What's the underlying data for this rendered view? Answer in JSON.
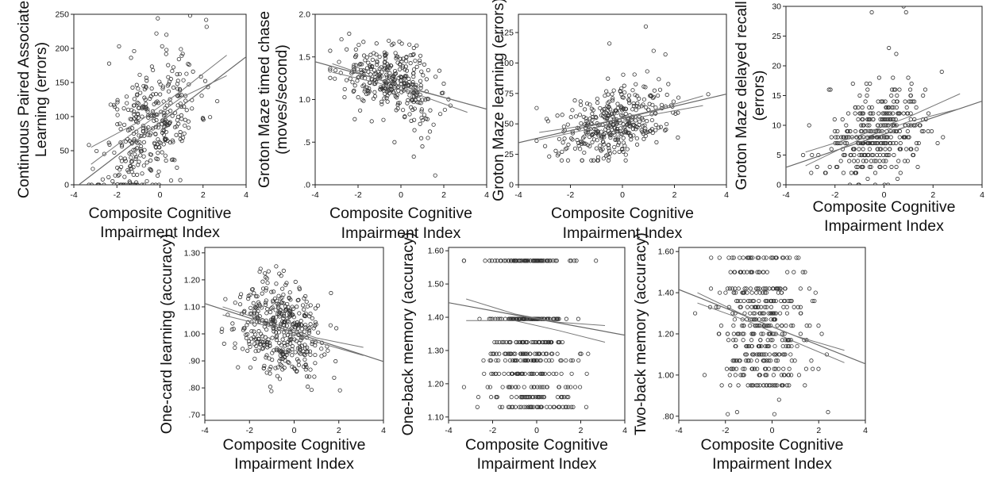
{
  "chart_data": [
    {
      "type": "scatter",
      "ylabel": [
        "Continuous Paired Associate",
        "Learning (errors)"
      ],
      "xlabel": [
        "Composite Cognitive",
        "Impairment Index"
      ],
      "xlim": [
        -4,
        4
      ],
      "ylim": [
        0,
        250
      ],
      "xticks": [
        -4,
        -2,
        0,
        2,
        4
      ],
      "yticks": [
        {
          "v": 0,
          "l": "0"
        },
        {
          "v": 50,
          "l": "50"
        },
        {
          "v": 100,
          "l": "100"
        },
        {
          "v": 150,
          "l": "150"
        },
        {
          "v": 200,
          "l": "200"
        },
        {
          "v": 250,
          "l": "250"
        }
      ],
      "gen": {
        "seed": 11,
        "n": 360,
        "xm": -0.4,
        "xsd": 1.1,
        "slope": 24,
        "int": 95,
        "noise": 48,
        "ymin": 0,
        "ymax": 250,
        "step": 0
      },
      "fit": [
        [
          -4.1,
          -8
        ],
        [
          4.1,
          190
        ]
      ],
      "band": [
        [
          -3.2,
          30,
          55
        ],
        [
          -1,
          82,
          92
        ],
        [
          1,
          128,
          138
        ],
        [
          3.1,
          160,
          190
        ]
      ],
      "points": [
        {
          "x": -0.1,
          "y": 244
        },
        {
          "x": 1.4,
          "y": 248
        },
        {
          "x": 0.3,
          "y": 220
        },
        {
          "x": -1.9,
          "y": 203
        },
        {
          "x": -1.2,
          "y": 196
        }
      ]
    },
    {
      "type": "scatter",
      "ylabel": [
        "Groton Maze timed chase",
        "(moves/second)"
      ],
      "xlabel": [
        "Composite Cognitive",
        "Impairment Index"
      ],
      "xlim": [
        -4,
        4
      ],
      "ylim": [
        0,
        2.0
      ],
      "xticks": [
        -4,
        -2,
        0,
        2,
        4
      ],
      "yticks": [
        {
          "v": 0,
          "l": ".0"
        },
        {
          "v": 0.5,
          "l": ".5"
        },
        {
          "v": 1.0,
          "l": "1.0"
        },
        {
          "v": 1.5,
          "l": "1.5"
        },
        {
          "v": 2.0,
          "l": "2.0"
        }
      ],
      "gen": {
        "seed": 22,
        "n": 340,
        "xm": -0.5,
        "xsd": 1.1,
        "slope": -0.07,
        "int": 1.18,
        "noise": 0.2,
        "ymin": 0.05,
        "ymax": 1.85,
        "step": 0
      },
      "fit": [
        [
          -4.1,
          1.45
        ],
        [
          4.1,
          0.88
        ]
      ],
      "band": [
        [
          -3.2,
          1.32,
          1.42
        ],
        [
          -1,
          1.19,
          1.23
        ],
        [
          1,
          1.04,
          1.09
        ],
        [
          3.1,
          0.85,
          0.95
        ]
      ],
      "points": [
        {
          "x": 0.6,
          "y": 0.33
        },
        {
          "x": 1.6,
          "y": 0.11
        },
        {
          "x": 1.0,
          "y": 0.45
        },
        {
          "x": -0.3,
          "y": 0.5
        }
      ]
    },
    {
      "type": "scatter",
      "ylabel": [
        "Groton Maze learning (errors)"
      ],
      "xlabel": [
        "Composite Cognitive",
        "Impairment Index"
      ],
      "xlim": [
        -4,
        4
      ],
      "ylim": [
        0,
        140
      ],
      "xticks": [
        -4,
        -2,
        0,
        2,
        4
      ],
      "yticks": [
        {
          "v": 0,
          "l": "0"
        },
        {
          "v": 25,
          "l": "25"
        },
        {
          "v": 50,
          "l": "50"
        },
        {
          "v": 75,
          "l": "75"
        },
        {
          "v": 100,
          "l": "100"
        },
        {
          "v": 125,
          "l": "125"
        }
      ],
      "gen": {
        "seed": 33,
        "n": 380,
        "xm": -0.3,
        "xsd": 1.05,
        "slope": 5,
        "int": 52,
        "noise": 14,
        "ymin": 20,
        "ymax": 125,
        "step": 0
      },
      "fit": [
        [
          -4.1,
          34
        ],
        [
          4.1,
          75
        ]
      ],
      "band": [
        [
          -3.2,
          37,
          43
        ],
        [
          -1,
          47,
          50
        ],
        [
          1,
          57,
          60
        ],
        [
          3.1,
          65,
          73
        ]
      ],
      "points": [
        {
          "x": 0.9,
          "y": 130
        },
        {
          "x": -0.5,
          "y": 116
        },
        {
          "x": 1.2,
          "y": 110
        }
      ]
    },
    {
      "type": "scatter",
      "ylabel": [
        "Groton Maze delayed recall",
        "(errors)"
      ],
      "xlabel": [
        "Composite Cognitive",
        "Impairment Index"
      ],
      "xlim": [
        -4,
        4
      ],
      "ylim": [
        0,
        30
      ],
      "xticks": [
        -4,
        -2,
        0,
        2,
        4
      ],
      "yticks": [
        {
          "v": 0,
          "l": "0"
        },
        {
          "v": 5,
          "l": "5"
        },
        {
          "v": 10,
          "l": "10"
        },
        {
          "v": 15,
          "l": "15"
        },
        {
          "v": 20,
          "l": "20"
        },
        {
          "v": 25,
          "l": "25"
        },
        {
          "v": 30,
          "l": "30"
        }
      ],
      "gen": {
        "seed": 44,
        "n": 360,
        "xm": -0.3,
        "xsd": 1.05,
        "slope": 1.3,
        "int": 9,
        "noise": 4,
        "ymin": 0,
        "ymax": 24,
        "step": 1
      },
      "fit": [
        [
          -4.1,
          2.8
        ],
        [
          4.1,
          14.2
        ]
      ],
      "band": [
        [
          -3.2,
          3.2,
          5.5
        ],
        [
          -1,
          7.6,
          8.3
        ],
        [
          1,
          10.6,
          11.4
        ],
        [
          3.1,
          12.8,
          15.3
        ]
      ],
      "points": [
        {
          "x": -0.5,
          "y": 29
        },
        {
          "x": 0.8,
          "y": 30
        },
        {
          "x": 0.9,
          "y": 29
        },
        {
          "x": 0.2,
          "y": 23
        },
        {
          "x": 0.5,
          "y": 22
        }
      ]
    },
    {
      "type": "scatter",
      "ylabel": [
        "One-card learning (accuracy)"
      ],
      "xlabel": [
        "Composite Cognitive",
        "Impairment Index"
      ],
      "xlim": [
        -4,
        4
      ],
      "ylim": [
        0.68,
        1.32
      ],
      "xticks": [
        -4,
        -2,
        0,
        2,
        4
      ],
      "yticks": [
        {
          "v": 0.7,
          "l": ".70"
        },
        {
          "v": 0.8,
          "l": ".80"
        },
        {
          "v": 0.9,
          "l": ".90"
        },
        {
          "v": 1.0,
          "l": "1.00"
        },
        {
          "v": 1.1,
          "l": "1.10"
        },
        {
          "v": 1.2,
          "l": "1.20"
        },
        {
          "v": 1.3,
          "l": "1.30"
        }
      ],
      "gen": {
        "seed": 55,
        "n": 420,
        "xm": -0.6,
        "xsd": 1.0,
        "slope": -0.028,
        "int": 1.0,
        "noise": 0.085,
        "ymin": 0.78,
        "ymax": 1.25,
        "step": 0
      },
      "fit": [
        [
          -4.1,
          1.115
        ],
        [
          4.1,
          0.895
        ]
      ],
      "band": [
        [
          -3.2,
          1.07,
          1.1
        ],
        [
          -1,
          1.025,
          1.04
        ],
        [
          1,
          0.97,
          0.985
        ],
        [
          3.1,
          0.92,
          0.95
        ]
      ],
      "points": []
    },
    {
      "type": "scatter",
      "ylabel": [
        "One-back memory (accuracy)"
      ],
      "xlabel": [
        "Composite Cognitive",
        "Impairment Index"
      ],
      "xlim": [
        -4,
        4
      ],
      "ylim": [
        1.09,
        1.61
      ],
      "xticks": [
        -4,
        -2,
        0,
        2,
        4
      ],
      "yticks": [
        {
          "v": 1.1,
          "l": "1.10"
        },
        {
          "v": 1.2,
          "l": "1.20"
        },
        {
          "v": 1.3,
          "l": "1.30"
        },
        {
          "v": 1.4,
          "l": "1.40"
        },
        {
          "v": 1.5,
          "l": "1.50"
        },
        {
          "v": 1.6,
          "l": "1.60"
        }
      ],
      "gen": {
        "seed": 66,
        "n": 440,
        "xm": -0.5,
        "xsd": 1.05,
        "slope": -0.012,
        "int": 1.38,
        "noise": 0.13,
        "ymin": 1.12,
        "ymax": 1.57,
        "levels": [
          1.57,
          1.57,
          1.395,
          1.395,
          1.325,
          1.29,
          1.27,
          1.23,
          1.19,
          1.16,
          1.13
        ]
      },
      "fit": [
        [
          -4.1,
          1.445
        ],
        [
          4.1,
          1.345
        ]
      ],
      "band": [
        [
          -3.2,
          1.39,
          1.455
        ],
        [
          -1,
          1.39,
          1.41
        ],
        [
          1,
          1.36,
          1.385
        ],
        [
          3.1,
          1.325,
          1.375
        ]
      ],
      "points": []
    },
    {
      "type": "scatter",
      "ylabel": [
        "Two-back memory (accuracy)"
      ],
      "xlabel": [
        "Composite Cognitive",
        "Impairment Index"
      ],
      "xlim": [
        -4,
        4
      ],
      "ylim": [
        0.78,
        1.62
      ],
      "xticks": [
        -4,
        -2,
        0,
        2,
        4
      ],
      "yticks": [
        {
          "v": 0.8,
          "l": ".80"
        },
        {
          "v": 1.0,
          "l": "1.00"
        },
        {
          "v": 1.2,
          "l": "1.20"
        },
        {
          "v": 1.4,
          "l": "1.40"
        },
        {
          "v": 1.6,
          "l": "1.60"
        }
      ],
      "gen": {
        "seed": 77,
        "n": 420,
        "xm": -0.4,
        "xsd": 1.05,
        "slope": -0.045,
        "int": 1.23,
        "noise": 0.13,
        "ymin": 0.82,
        "ymax": 1.57,
        "levels": [
          1.57,
          1.5,
          1.42,
          1.4,
          1.36,
          1.33,
          1.3,
          1.27,
          1.24,
          1.2,
          1.17,
          1.14,
          1.1,
          1.07,
          1.03,
          1.0,
          0.95
        ]
      },
      "fit": [
        [
          -4.1,
          1.42
        ],
        [
          4.1,
          1.05
        ]
      ],
      "band": [
        [
          -3.2,
          1.35,
          1.4
        ],
        [
          -1,
          1.26,
          1.28
        ],
        [
          1,
          1.16,
          1.19
        ],
        [
          3.1,
          1.06,
          1.12
        ]
      ],
      "points": [
        {
          "x": -1.9,
          "y": 0.81
        },
        {
          "x": -1.5,
          "y": 0.82
        },
        {
          "x": 0.1,
          "y": 0.81
        },
        {
          "x": 2.4,
          "y": 0.82
        },
        {
          "x": 0.3,
          "y": 0.88
        }
      ]
    }
  ]
}
